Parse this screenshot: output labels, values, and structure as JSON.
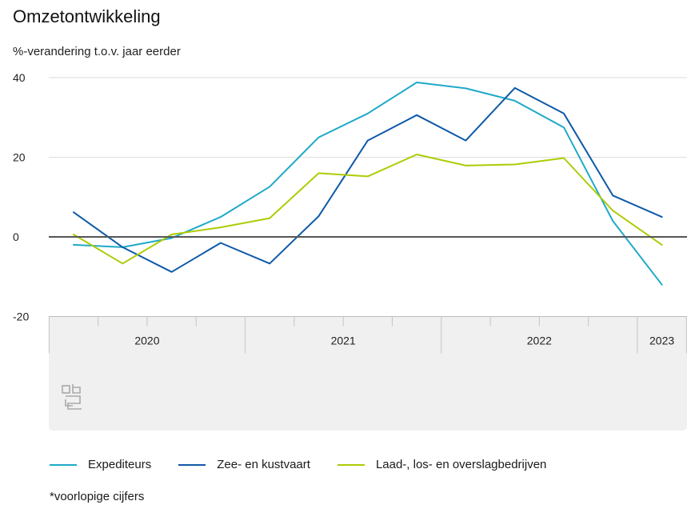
{
  "chart_data": {
    "type": "line",
    "title": "Omzetontwikkeling",
    "ylabel": "%-verandering t.o.v. jaar eerder",
    "xlabel": "",
    "ylim": [
      -20,
      40
    ],
    "y_ticks": [
      40,
      20,
      0,
      -20
    ],
    "grid": true,
    "x": [
      "2020 Q1",
      "2020 Q2",
      "2020 Q3",
      "2020 Q4",
      "2021 Q1",
      "2021 Q2",
      "2021 Q3",
      "2021 Q4",
      "2022 Q1",
      "2022 Q2",
      "2022 Q3",
      "2022 Q4",
      "2023 Q1"
    ],
    "year_labels": [
      "2020",
      "2021",
      "2022",
      "2023"
    ],
    "year_quarters": [
      4,
      4,
      4,
      1
    ],
    "series": [
      {
        "name": "Expediteurs",
        "color": "#1fa9c9",
        "values": [
          -2,
          -2.6,
          -0.3,
          5,
          12.6,
          25,
          31,
          38.8,
          37.3,
          34.2,
          27.5,
          4,
          -12
        ]
      },
      {
        "name": "Zee- en kustvaart",
        "color": "#0e5aa7",
        "values": [
          6.2,
          -2.6,
          -8.8,
          -1.5,
          -6.7,
          5.2,
          24.2,
          30.6,
          24.2,
          37.4,
          31,
          10.4,
          5
        ]
      },
      {
        "name": "Laad-, los- en overslagbedrijven",
        "color": "#afcb05",
        "values": [
          0.6,
          -6.7,
          0.6,
          2.4,
          4.7,
          16,
          15.2,
          20.7,
          17.9,
          18.2,
          19.8,
          6.6,
          -2
        ]
      }
    ],
    "legend": "bottom",
    "footnote": "*voorlopige cijfers"
  },
  "logo": {
    "name": "cbs"
  }
}
